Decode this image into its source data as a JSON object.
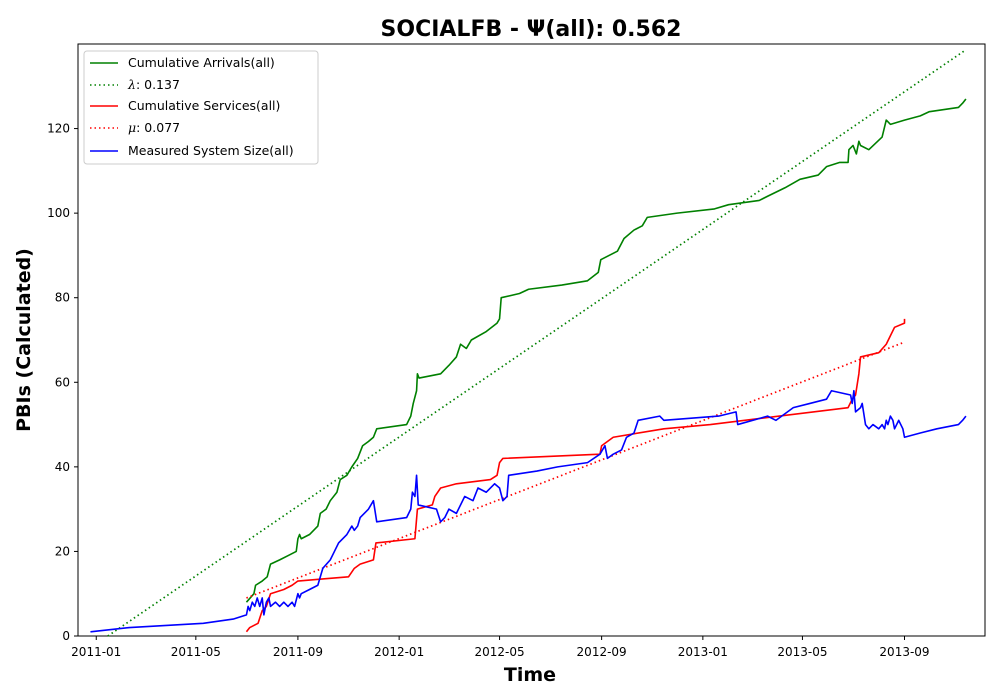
{
  "chart_data": {
    "type": "line",
    "title": "SOCIALFB -  Ψ(all): 0.562",
    "xlabel": "Time",
    "ylabel": "PBIs (Calculated)",
    "xlim": [
      "2010-12-10",
      "2013-12-07"
    ],
    "ylim": [
      0,
      140
    ],
    "x_ticks": [
      "2011-01",
      "2011-05",
      "2011-09",
      "2012-01",
      "2012-05",
      "2012-09",
      "2013-01",
      "2013-05",
      "2013-09"
    ],
    "y_ticks": [
      0,
      20,
      40,
      60,
      80,
      100,
      120
    ],
    "grid": false,
    "legend_position": "top-left",
    "legend": [
      {
        "label": "Cumulative Arrivals(all)",
        "color": "#008000",
        "style": "solid"
      },
      {
        "label_prefix": "λ",
        "label_suffix": ": 0.137",
        "color": "#008000",
        "style": "dotted"
      },
      {
        "label": "Cumulative Services(all)",
        "color": "#ff0000",
        "style": "solid"
      },
      {
        "label_prefix": "μ",
        "label_suffix": ": 0.077",
        "color": "#ff0000",
        "style": "dotted"
      },
      {
        "label": "Measured System Size(all)",
        "color": "#0000ff",
        "style": "solid"
      }
    ],
    "series": [
      {
        "name": "Cumulative Arrivals(all)",
        "color": "#008000",
        "style": "solid",
        "points": [
          [
            "2011-07-01",
            8
          ],
          [
            "2011-07-10",
            10
          ],
          [
            "2011-07-12",
            12
          ],
          [
            "2011-07-20",
            13
          ],
          [
            "2011-07-26",
            14
          ],
          [
            "2011-07-30",
            17
          ],
          [
            "2011-08-10",
            18
          ],
          [
            "2011-08-20",
            19
          ],
          [
            "2011-08-30",
            20
          ],
          [
            "2011-09-01",
            23
          ],
          [
            "2011-09-03",
            24
          ],
          [
            "2011-09-05",
            23
          ],
          [
            "2011-09-15",
            24
          ],
          [
            "2011-09-25",
            26
          ],
          [
            "2011-09-28",
            29
          ],
          [
            "2011-10-05",
            30
          ],
          [
            "2011-10-10",
            32
          ],
          [
            "2011-10-18",
            34
          ],
          [
            "2011-10-22",
            37
          ],
          [
            "2011-10-30",
            38
          ],
          [
            "2011-11-05",
            40
          ],
          [
            "2011-11-12",
            42
          ],
          [
            "2011-11-18",
            45
          ],
          [
            "2011-11-25",
            46
          ],
          [
            "2011-12-01",
            47
          ],
          [
            "2011-12-05",
            49
          ],
          [
            "2012-01-10",
            50
          ],
          [
            "2012-01-15",
            52
          ],
          [
            "2012-01-18",
            55
          ],
          [
            "2012-01-22",
            58
          ],
          [
            "2012-01-23",
            62
          ],
          [
            "2012-01-25",
            61
          ],
          [
            "2012-02-20",
            62
          ],
          [
            "2012-03-01",
            64
          ],
          [
            "2012-03-10",
            66
          ],
          [
            "2012-03-15",
            69
          ],
          [
            "2012-03-22",
            68
          ],
          [
            "2012-03-28",
            70
          ],
          [
            "2012-04-15",
            72
          ],
          [
            "2012-04-28",
            74
          ],
          [
            "2012-05-01",
            75
          ],
          [
            "2012-05-03",
            80
          ],
          [
            "2012-05-25",
            81
          ],
          [
            "2012-06-05",
            82
          ],
          [
            "2012-07-15",
            83
          ],
          [
            "2012-08-15",
            84
          ],
          [
            "2012-08-28",
            86
          ],
          [
            "2012-08-31",
            89
          ],
          [
            "2012-09-10",
            90
          ],
          [
            "2012-09-20",
            91
          ],
          [
            "2012-09-28",
            94
          ],
          [
            "2012-10-10",
            96
          ],
          [
            "2012-10-20",
            97
          ],
          [
            "2012-10-26",
            99
          ],
          [
            "2012-12-01",
            100
          ],
          [
            "2013-01-15",
            101
          ],
          [
            "2013-02-01",
            102
          ],
          [
            "2013-03-10",
            103
          ],
          [
            "2013-03-20",
            104
          ],
          [
            "2013-04-10",
            106
          ],
          [
            "2013-04-28",
            108
          ],
          [
            "2013-05-20",
            109
          ],
          [
            "2013-05-30",
            111
          ],
          [
            "2013-06-15",
            112
          ],
          [
            "2013-06-25",
            112
          ],
          [
            "2013-06-26",
            115
          ],
          [
            "2013-07-01",
            116
          ],
          [
            "2013-07-05",
            114
          ],
          [
            "2013-07-08",
            117
          ],
          [
            "2013-07-10",
            116
          ],
          [
            "2013-07-20",
            115
          ],
          [
            "2013-08-05",
            118
          ],
          [
            "2013-08-10",
            122
          ],
          [
            "2013-08-15",
            121
          ],
          [
            "2013-09-01",
            122
          ],
          [
            "2013-09-20",
            123
          ],
          [
            "2013-10-01",
            124
          ],
          [
            "2013-11-05",
            125
          ],
          [
            "2013-11-10",
            126
          ],
          [
            "2013-11-14",
            127
          ]
        ]
      },
      {
        "name": "λ: 0.137",
        "color": "#008000",
        "style": "dotted",
        "points": [
          [
            "2011-01-15",
            0
          ],
          [
            "2013-11-13",
            138.5
          ]
        ]
      },
      {
        "name": "Cumulative Services(all)",
        "color": "#ff0000",
        "style": "solid",
        "points": [
          [
            "2011-07-01",
            1
          ],
          [
            "2011-07-05",
            2
          ],
          [
            "2011-07-15",
            3
          ],
          [
            "2011-07-20",
            6
          ],
          [
            "2011-07-25",
            7
          ],
          [
            "2011-07-30",
            10
          ],
          [
            "2011-08-15",
            11
          ],
          [
            "2011-08-25",
            12
          ],
          [
            "2011-09-01",
            13
          ],
          [
            "2011-10-01",
            13.5
          ],
          [
            "2011-11-01",
            14
          ],
          [
            "2011-11-08",
            16
          ],
          [
            "2011-11-15",
            17
          ],
          [
            "2011-12-01",
            18
          ],
          [
            "2011-12-04",
            22
          ],
          [
            "2012-01-20",
            23
          ],
          [
            "2012-01-23",
            30
          ],
          [
            "2012-02-10",
            31
          ],
          [
            "2012-02-13",
            33
          ],
          [
            "2012-02-20",
            35
          ],
          [
            "2012-03-10",
            36
          ],
          [
            "2012-04-20",
            37
          ],
          [
            "2012-04-28",
            38
          ],
          [
            "2012-05-01",
            41
          ],
          [
            "2012-05-05",
            42
          ],
          [
            "2012-08-30",
            43
          ],
          [
            "2012-09-01",
            45
          ],
          [
            "2012-09-15",
            47
          ],
          [
            "2012-11-15",
            49
          ],
          [
            "2013-01-10",
            50
          ],
          [
            "2013-06-25",
            54
          ],
          [
            "2013-06-30",
            56
          ],
          [
            "2013-07-04",
            57
          ],
          [
            "2013-07-08",
            62
          ],
          [
            "2013-07-10",
            66
          ],
          [
            "2013-08-01",
            67
          ],
          [
            "2013-08-10",
            69
          ],
          [
            "2013-08-15",
            71
          ],
          [
            "2013-08-20",
            73
          ],
          [
            "2013-09-01",
            74
          ],
          [
            "2013-09-01",
            75
          ]
        ]
      },
      {
        "name": "μ: 0.077",
        "color": "#ff0000",
        "style": "dotted",
        "points": [
          [
            "2011-07-01",
            9
          ],
          [
            "2013-09-01",
            69.5
          ]
        ]
      },
      {
        "name": "Measured System Size(all)",
        "color": "#0000ff",
        "style": "solid",
        "points": [
          [
            "2010-12-25",
            1
          ],
          [
            "2011-02-10",
            2
          ],
          [
            "2011-05-10",
            3
          ],
          [
            "2011-06-15",
            4
          ],
          [
            "2011-07-01",
            5
          ],
          [
            "2011-07-03",
            7
          ],
          [
            "2011-07-05",
            6
          ],
          [
            "2011-07-08",
            8
          ],
          [
            "2011-07-11",
            7
          ],
          [
            "2011-07-14",
            9
          ],
          [
            "2011-07-17",
            7
          ],
          [
            "2011-07-20",
            9
          ],
          [
            "2011-07-22",
            5
          ],
          [
            "2011-07-25",
            8
          ],
          [
            "2011-07-28",
            9
          ],
          [
            "2011-07-30",
            7
          ],
          [
            "2011-08-05",
            8
          ],
          [
            "2011-08-10",
            7
          ],
          [
            "2011-08-15",
            8
          ],
          [
            "2011-08-20",
            7
          ],
          [
            "2011-08-25",
            8
          ],
          [
            "2011-08-28",
            7
          ],
          [
            "2011-09-01",
            10
          ],
          [
            "2011-09-03",
            9
          ],
          [
            "2011-09-05",
            10
          ],
          [
            "2011-09-15",
            11
          ],
          [
            "2011-09-25",
            12
          ],
          [
            "2011-10-01",
            16
          ],
          [
            "2011-10-10",
            18
          ],
          [
            "2011-10-15",
            20
          ],
          [
            "2011-10-20",
            22
          ],
          [
            "2011-10-30",
            24
          ],
          [
            "2011-11-05",
            26
          ],
          [
            "2011-11-08",
            25
          ],
          [
            "2011-11-12",
            26
          ],
          [
            "2011-11-15",
            28
          ],
          [
            "2011-11-25",
            30
          ],
          [
            "2011-12-01",
            32
          ],
          [
            "2011-12-05",
            27
          ],
          [
            "2012-01-10",
            28
          ],
          [
            "2012-01-15",
            30
          ],
          [
            "2012-01-17",
            34
          ],
          [
            "2012-01-20",
            33
          ],
          [
            "2012-01-22",
            38
          ],
          [
            "2012-01-24",
            31
          ],
          [
            "2012-02-15",
            30
          ],
          [
            "2012-02-20",
            27
          ],
          [
            "2012-02-25",
            28
          ],
          [
            "2012-03-01",
            30
          ],
          [
            "2012-03-10",
            29
          ],
          [
            "2012-03-20",
            33
          ],
          [
            "2012-03-30",
            32
          ],
          [
            "2012-04-05",
            35
          ],
          [
            "2012-04-15",
            34
          ],
          [
            "2012-04-25",
            36
          ],
          [
            "2012-05-01",
            35
          ],
          [
            "2012-05-05",
            32
          ],
          [
            "2012-05-10",
            33
          ],
          [
            "2012-05-12",
            38
          ],
          [
            "2012-06-15",
            39
          ],
          [
            "2012-07-10",
            40
          ],
          [
            "2012-08-15",
            41
          ],
          [
            "2012-08-30",
            43
          ],
          [
            "2012-09-05",
            45
          ],
          [
            "2012-09-08",
            42
          ],
          [
            "2012-09-15",
            43
          ],
          [
            "2012-09-25",
            44
          ],
          [
            "2012-10-01",
            47
          ],
          [
            "2012-10-10",
            48
          ],
          [
            "2012-10-15",
            51
          ],
          [
            "2012-11-10",
            52
          ],
          [
            "2012-11-15",
            51
          ],
          [
            "2013-01-20",
            52
          ],
          [
            "2013-02-10",
            53
          ],
          [
            "2013-02-12",
            50
          ],
          [
            "2013-03-20",
            52
          ],
          [
            "2013-03-30",
            51
          ],
          [
            "2013-04-20",
            54
          ],
          [
            "2013-05-10",
            55
          ],
          [
            "2013-05-30",
            56
          ],
          [
            "2013-06-05",
            58
          ],
          [
            "2013-06-28",
            57
          ],
          [
            "2013-06-30",
            55
          ],
          [
            "2013-07-02",
            58
          ],
          [
            "2013-07-04",
            53
          ],
          [
            "2013-07-10",
            54
          ],
          [
            "2013-07-12",
            55
          ],
          [
            "2013-07-16",
            50
          ],
          [
            "2013-07-20",
            49
          ],
          [
            "2013-07-25",
            50
          ],
          [
            "2013-08-01",
            49
          ],
          [
            "2013-08-05",
            50
          ],
          [
            "2013-08-08",
            49
          ],
          [
            "2013-08-10",
            51
          ],
          [
            "2013-08-12",
            50
          ],
          [
            "2013-08-15",
            52
          ],
          [
            "2013-08-18",
            51
          ],
          [
            "2013-08-20",
            49
          ],
          [
            "2013-08-25",
            51
          ],
          [
            "2013-08-30",
            49
          ],
          [
            "2013-09-01",
            47
          ],
          [
            "2013-09-20",
            48
          ],
          [
            "2013-10-10",
            49
          ],
          [
            "2013-11-05",
            50
          ],
          [
            "2013-11-10",
            51
          ],
          [
            "2013-11-14",
            52
          ]
        ]
      }
    ]
  }
}
